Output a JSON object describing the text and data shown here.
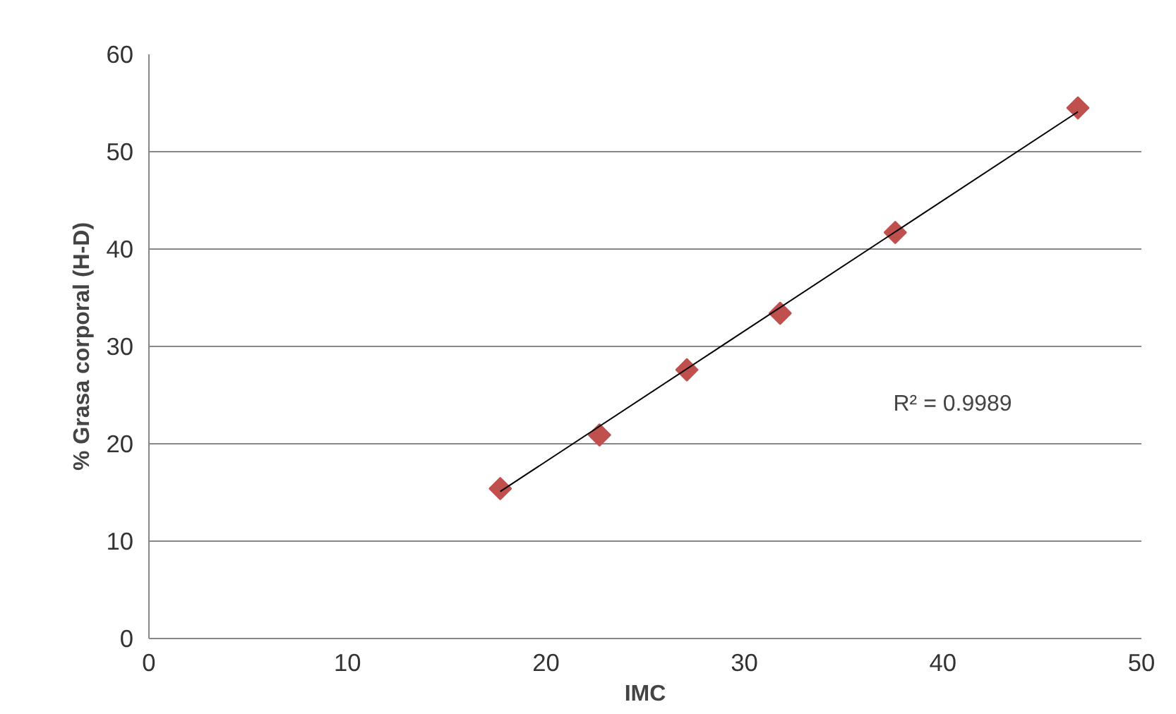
{
  "chart_data": {
    "type": "scatter",
    "xlabel": "IMC",
    "ylabel": "% Grasa corporal (H-D)",
    "xlim": [
      0,
      50
    ],
    "ylim": [
      0,
      60
    ],
    "xticks": [
      0,
      10,
      20,
      30,
      40,
      50
    ],
    "yticks": [
      0,
      10,
      20,
      30,
      40,
      50,
      60
    ],
    "grid": "y",
    "marker": "diamond",
    "annotations": [
      "R² = 0.9989"
    ],
    "series": [
      {
        "color": "#c0504d",
        "x": [
          17.7,
          22.7,
          27.1,
          31.8,
          37.6,
          46.8
        ],
        "values": [
          15.4,
          20.9,
          27.6,
          33.4,
          41.7,
          54.5
        ]
      },
      {
        "type": "line",
        "marker": "none",
        "color": "#000000",
        "x": [
          17.7,
          46.8
        ],
        "values": [
          15.1,
          54.1
        ]
      }
    ]
  }
}
